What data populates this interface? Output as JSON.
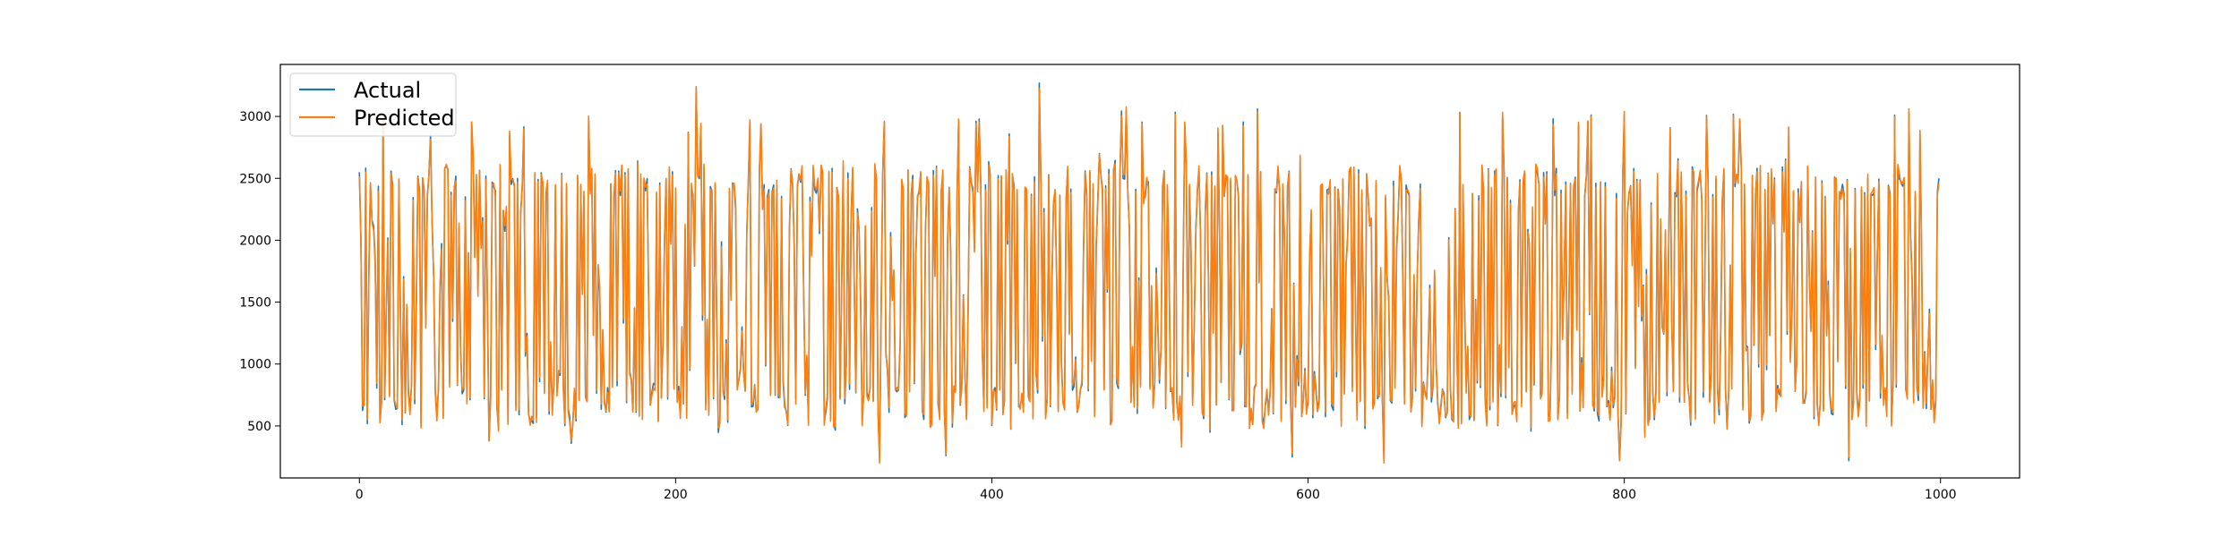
{
  "chart_data": {
    "type": "line",
    "title": "",
    "xlabel": "",
    "ylabel": "",
    "xlim": [
      -50,
      1050
    ],
    "ylim": [
      80,
      3420
    ],
    "x_ticks": [
      0,
      200,
      400,
      600,
      800,
      1000
    ],
    "y_ticks": [
      500,
      1000,
      1500,
      2000,
      2500,
      3000
    ],
    "x_tick_labels": [
      "0",
      "200",
      "400",
      "600",
      "800",
      "1000"
    ],
    "y_tick_labels": [
      "500",
      "1000",
      "1500",
      "2000",
      "2500",
      "3000"
    ],
    "grid": false,
    "legend": "upper left",
    "series_summary": {
      "points": 1000,
      "x_range": [
        0,
        999
      ],
      "levels": [
        500,
        550,
        600,
        650,
        700,
        750,
        800,
        900,
        1000,
        1100,
        1200,
        1300,
        1400,
        1500,
        1600,
        1700,
        1800,
        1900,
        2000,
        2100,
        2200,
        2300,
        2400,
        2450,
        2500,
        2550,
        2600,
        2900,
        3000
      ],
      "min": 220,
      "max": 3270,
      "note_values": [
        {
          "x": 0,
          "y": 2550
        },
        {
          "x": 5,
          "y": 520
        },
        {
          "x": 8,
          "y": 2160
        },
        {
          "x": 45,
          "y": 2850
        },
        {
          "x": 82,
          "y": 380
        },
        {
          "x": 134,
          "y": 360
        },
        {
          "x": 213,
          "y": 3240
        },
        {
          "x": 329,
          "y": 240
        },
        {
          "x": 371,
          "y": 260
        },
        {
          "x": 430,
          "y": 3270
        },
        {
          "x": 468,
          "y": 2700
        },
        {
          "x": 520,
          "y": 360
        },
        {
          "x": 568,
          "y": 3060
        },
        {
          "x": 590,
          "y": 250
        },
        {
          "x": 648,
          "y": 220
        },
        {
          "x": 755,
          "y": 2980
        },
        {
          "x": 797,
          "y": 220
        },
        {
          "x": 873,
          "y": 2970
        },
        {
          "x": 942,
          "y": 220
        },
        {
          "x": 980,
          "y": 3030
        },
        {
          "x": 999,
          "y": 2500
        }
      ]
    },
    "series": [
      {
        "name": "Actual",
        "color": "#1f77b4",
        "seed": 20240611
      },
      {
        "name": "Predicted",
        "color": "#ff7f0e",
        "seed": 20240611
      }
    ]
  }
}
